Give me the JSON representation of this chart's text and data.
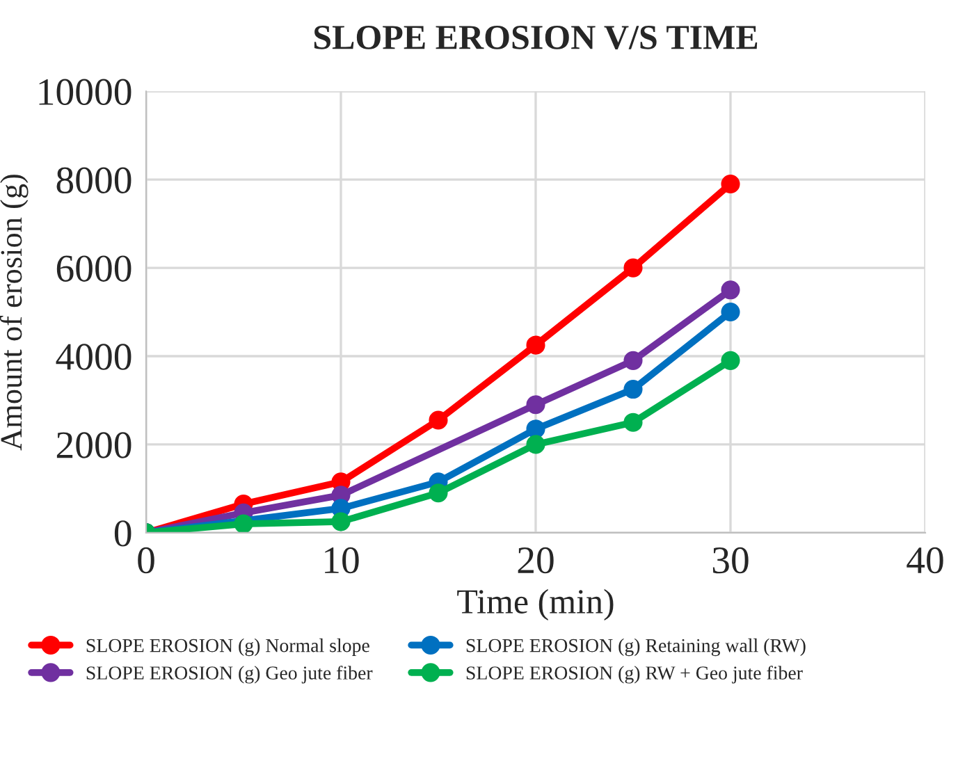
{
  "chart_data": {
    "type": "line",
    "title": "SLOPE EROSION V/S TIME",
    "xlabel": "Time (min)",
    "ylabel": "Amount of erosion (g)",
    "x": [
      0,
      5,
      10,
      15,
      20,
      25,
      30
    ],
    "series": [
      {
        "name": "SLOPE EROSION (g) Normal slope",
        "color": "#ff0000",
        "values": [
          0,
          650,
          1150,
          2550,
          4250,
          6000,
          7900
        ]
      },
      {
        "name": "SLOPE EROSION (g) Geo jute fiber",
        "color": "#7030a0",
        "values": [
          0,
          450,
          850,
          null,
          2900,
          3900,
          5500
        ]
      },
      {
        "name": "SLOPE EROSION (g) Retaining wall (RW)",
        "color": "#0070c0",
        "values": [
          0,
          null,
          550,
          1150,
          2350,
          3250,
          5000
        ]
      },
      {
        "name": "SLOPE EROSION (g) RW + Geo jute fiber",
        "color": "#00b050",
        "values": [
          0,
          200,
          250,
          900,
          2000,
          2500,
          3900
        ]
      }
    ],
    "xlim": [
      0,
      40
    ],
    "xticks": [
      0,
      10,
      20,
      30,
      40
    ],
    "ylim": [
      0,
      10000
    ],
    "yticks": [
      0,
      2000,
      4000,
      6000,
      8000,
      10000
    ],
    "grid": true,
    "legend": "bottom",
    "marker": "circle",
    "line_style": "solid"
  }
}
